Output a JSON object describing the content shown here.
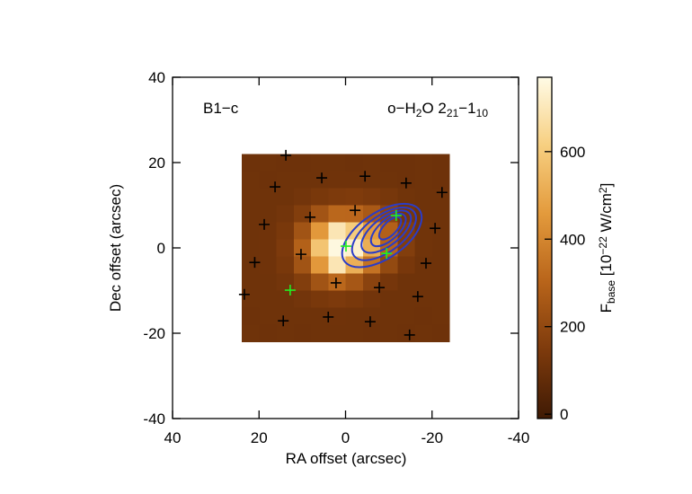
{
  "chart_data": {
    "type": "heatmap",
    "annotations": [
      [
        {
          "text": "B1−c",
          "kind": "normal"
        }
      ],
      [
        {
          "text": "o−H",
          "kind": "normal"
        },
        {
          "text": "2",
          "kind": "sub"
        },
        {
          "text": "O 2",
          "kind": "normal"
        },
        {
          "text": "21",
          "kind": "sub"
        },
        {
          "text": "−1",
          "kind": "normal"
        },
        {
          "text": "10",
          "kind": "sub"
        }
      ]
    ],
    "xlabel": "RA offset (arcsec)",
    "ylabel": "Dec offset (arcsec)",
    "xlim": [
      40,
      -40
    ],
    "xticks": [
      40,
      20,
      0,
      -20,
      -40
    ],
    "ylim": [
      -40,
      40
    ],
    "yticks": [
      -40,
      -20,
      0,
      20,
      40
    ],
    "x_edges": [
      24,
      20,
      16,
      12,
      8,
      4,
      0,
      -4,
      -8,
      -12,
      -16,
      -20,
      -24
    ],
    "y_edges": [
      22,
      18,
      14,
      10,
      6,
      2,
      -2,
      -6,
      -10,
      -14,
      -18,
      -22
    ],
    "z": [
      [
        108,
        110,
        107,
        109,
        111,
        110,
        108,
        110,
        109,
        108,
        110,
        109
      ],
      [
        110,
        109,
        111,
        110,
        112,
        114,
        113,
        112,
        110,
        109,
        110,
        108
      ],
      [
        110,
        110,
        110,
        120,
        136,
        146,
        150,
        140,
        130,
        115,
        110,
        110
      ],
      [
        110,
        110,
        120,
        160,
        244,
        310,
        309,
        262,
        188,
        130,
        112,
        110
      ],
      [
        110,
        113,
        136,
        241,
        453,
        693,
        605,
        467,
        288,
        159,
        116,
        111
      ],
      [
        110,
        114,
        146,
        290,
        583,
        760,
        735,
        516,
        298,
        160,
        116,
        110
      ],
      [
        110,
        113,
        136,
        241,
        453,
        693,
        521,
        343,
        204,
        133,
        112,
        110
      ],
      [
        110,
        110,
        120,
        160,
        241,
        310,
        255,
        180,
        128,
        112,
        110,
        110
      ],
      [
        110,
        110,
        110,
        120,
        136,
        146,
        136,
        122,
        112,
        110,
        110,
        110
      ],
      [
        109,
        110,
        111,
        110,
        112,
        113,
        112,
        111,
        110,
        110,
        109,
        110
      ],
      [
        110,
        108,
        110,
        109,
        110,
        111,
        110,
        109,
        110,
        108,
        110,
        109
      ]
    ],
    "colormap": [
      "#3f1a04",
      "#7d3a0c",
      "#b8641a",
      "#e39a3c",
      "#f7cf80",
      "#fffbe6"
    ],
    "zlim": [
      -10,
      770
    ],
    "colorbar_ticks": [
      0,
      200,
      400,
      600
    ],
    "colorbar_label": [
      {
        "text": "F",
        "kind": "normal"
      },
      {
        "text": "base",
        "kind": "sub"
      },
      {
        "text": " [10",
        "kind": "normal"
      },
      {
        "text": "−22",
        "kind": "sup"
      },
      {
        "text": " W/cm",
        "kind": "normal"
      },
      {
        "text": "2",
        "kind": "sup"
      },
      {
        "text": "]",
        "kind": "normal"
      }
    ],
    "markers": [
      {
        "color": "#000000",
        "x": [
          13.8,
          16.3,
          5.5,
          -4.5,
          -14,
          -22.3,
          18.8,
          8.2,
          -2.2,
          -20.7,
          21,
          10.3,
          -18.6,
          23.4,
          2.2,
          -7.8,
          -16.7,
          14.4,
          4,
          -5.7,
          -14.8
        ],
        "y": [
          21.7,
          14.3,
          16.4,
          16.8,
          15.2,
          13,
          5.5,
          7.2,
          8.8,
          4.6,
          -3.4,
          -1.5,
          -3.6,
          -10.9,
          -8.2,
          -9.3,
          -11.4,
          -17.1,
          -16.2,
          -17.3,
          -20.4
        ]
      },
      {
        "color": "#22ee22",
        "x": [
          -11.7,
          -0.1,
          -9.5,
          12.8
        ],
        "y": [
          7.6,
          0.4,
          -1.3,
          -9.9
        ]
      }
    ],
    "contour_color": "#2a3cc8",
    "contours": [
      {
        "x": -8.4,
        "y": 2.9,
        "rx": 10.5,
        "ry": 5.3,
        "angle": 34
      },
      {
        "x": -8.9,
        "y": 3.3,
        "rx": 8.6,
        "ry": 4.2,
        "angle": 36
      },
      {
        "x": -9.4,
        "y": 3.8,
        "rx": 6.8,
        "ry": 3.2,
        "angle": 38
      },
      {
        "x": -9.9,
        "y": 4.2,
        "rx": 5.0,
        "ry": 2.3,
        "angle": 42
      },
      {
        "x": -10.3,
        "y": 4.6,
        "rx": 3.3,
        "ry": 1.5,
        "angle": 46
      }
    ]
  }
}
